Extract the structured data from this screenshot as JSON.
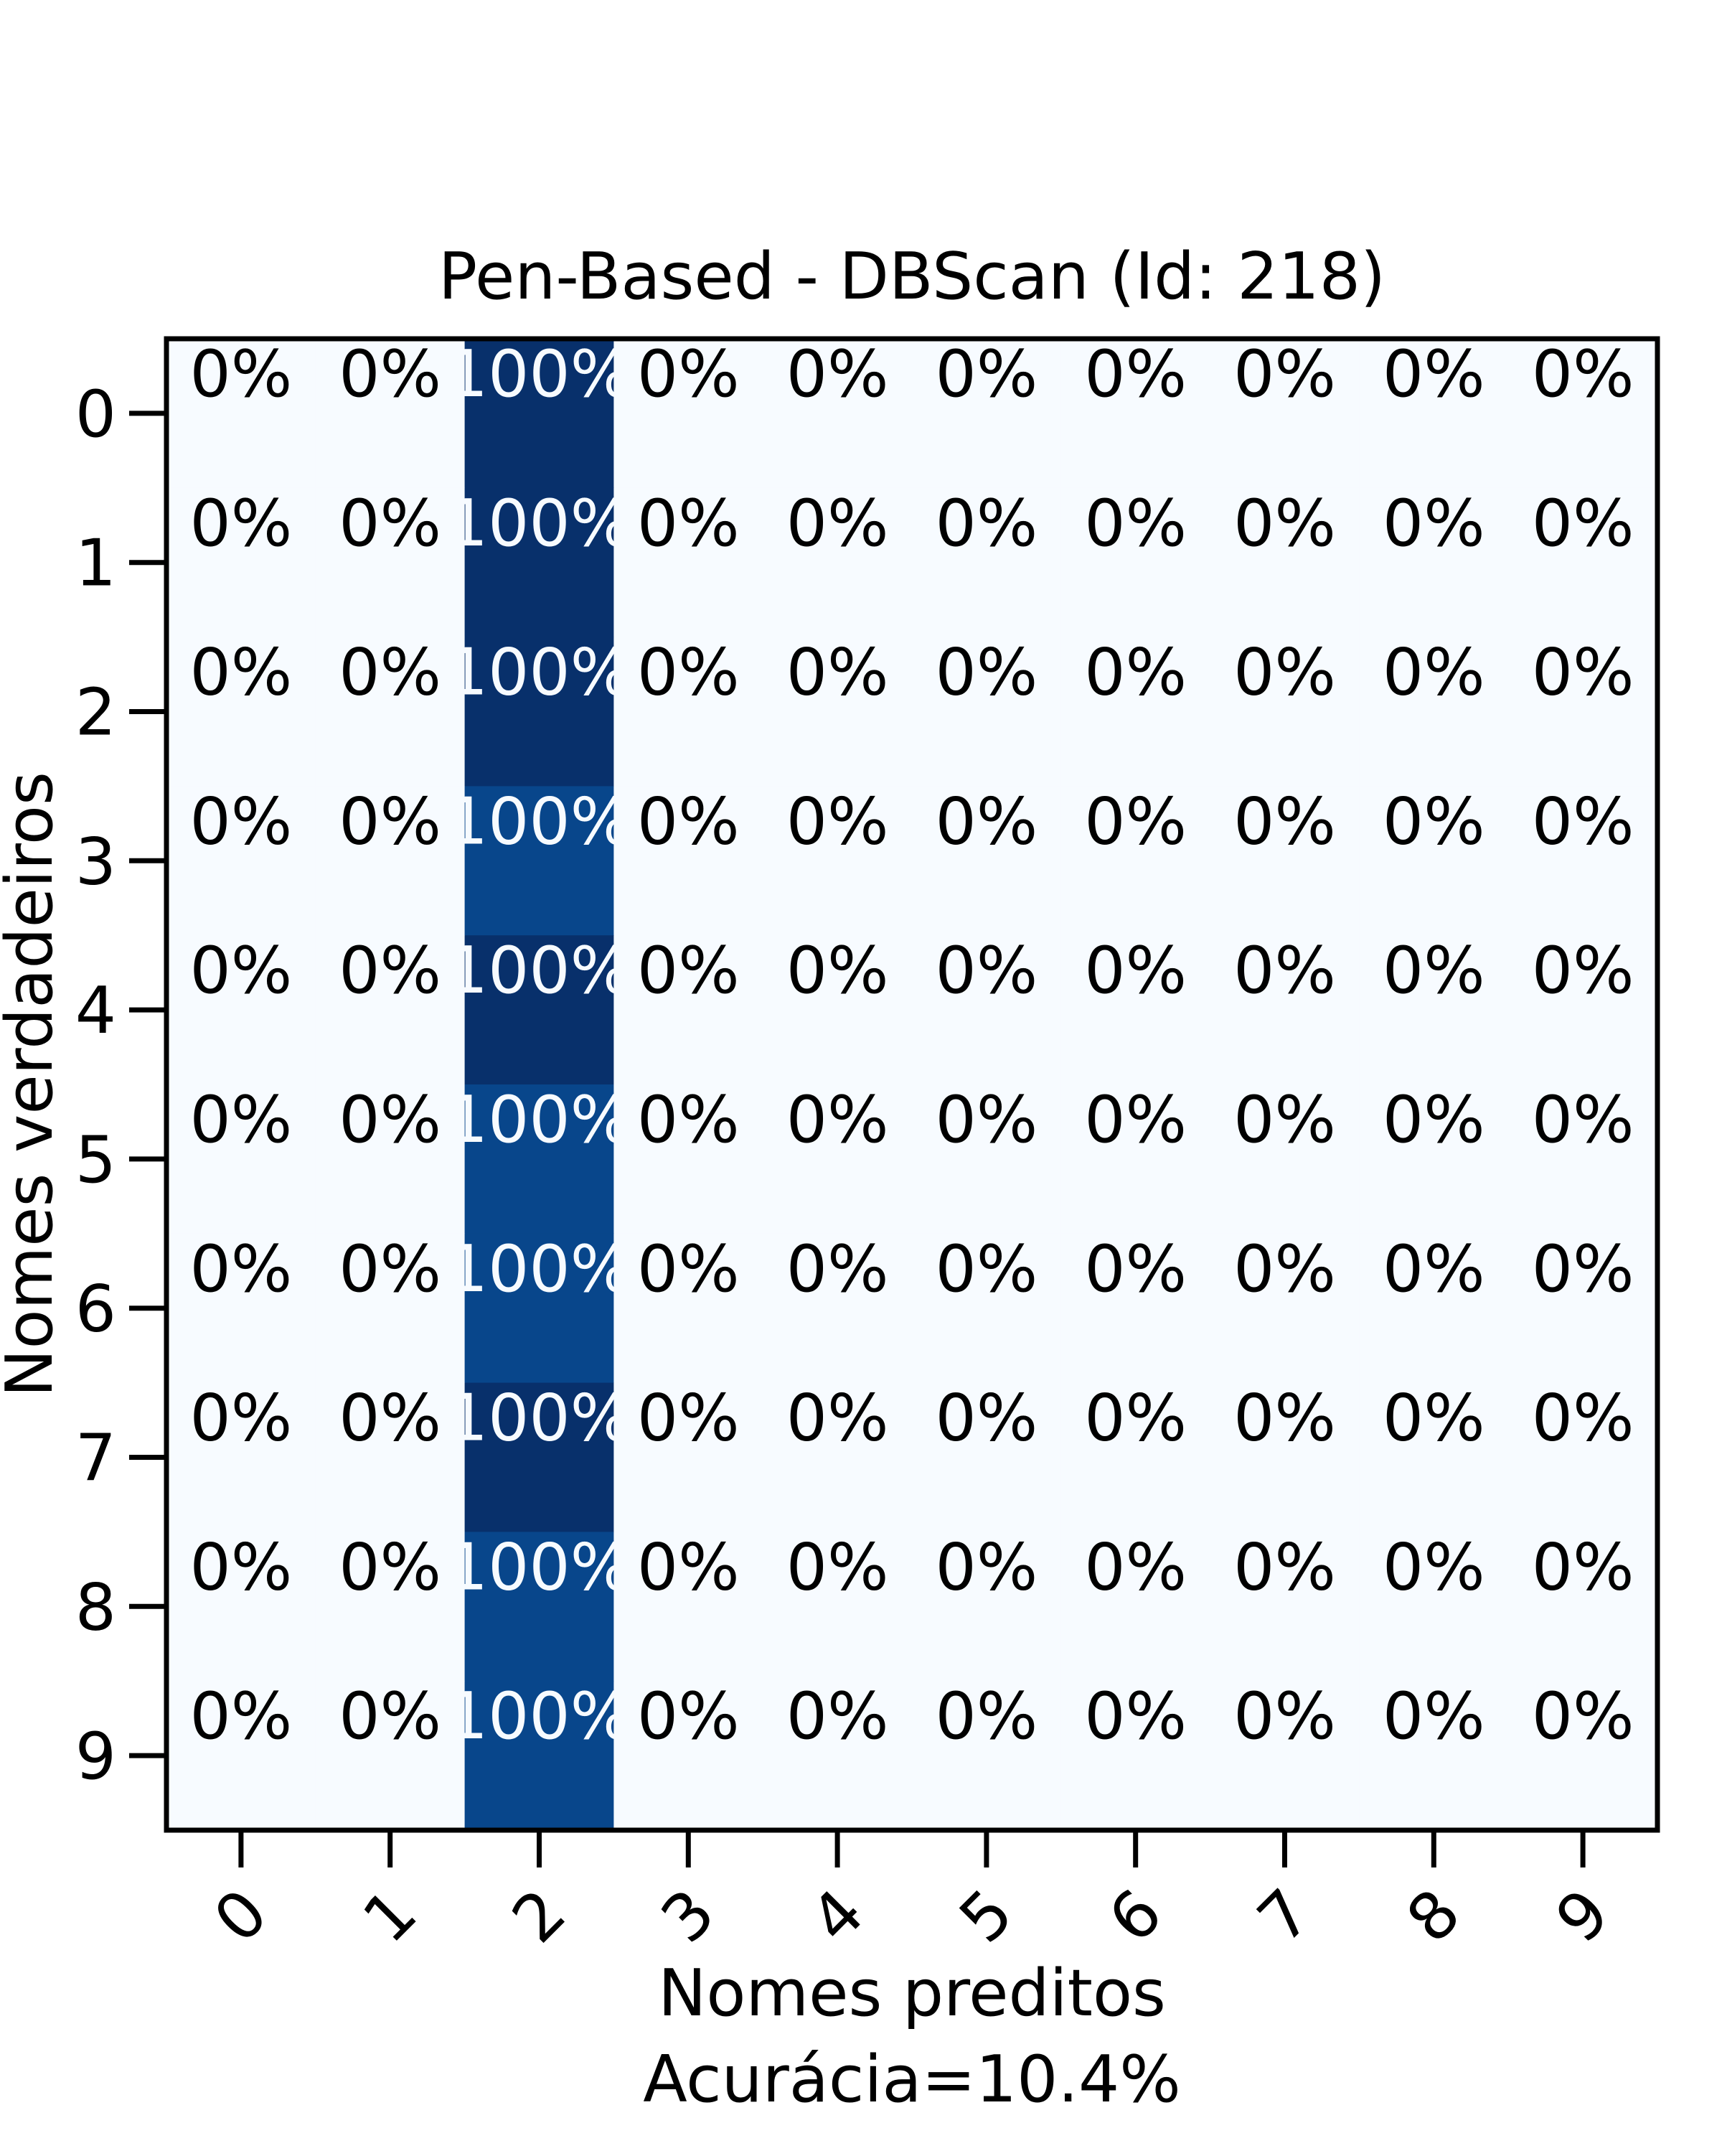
{
  "chart_data": {
    "type": "heatmap",
    "title": "Pen-Based - DBScan (Id: 218)",
    "xlabel": "Nomes preditos",
    "xlabel2": "Acurácia=10.4%",
    "ylabel": "Nomes verdadeiros",
    "x_categories": [
      "0",
      "1",
      "2",
      "3",
      "4",
      "5",
      "6",
      "7",
      "8",
      "9"
    ],
    "y_categories": [
      "0",
      "1",
      "2",
      "3",
      "4",
      "5",
      "6",
      "7",
      "8",
      "9"
    ],
    "colormap": "Blues",
    "value_unit": "percent of row",
    "values": [
      [
        0,
        0,
        100,
        0,
        0,
        0,
        0,
        0,
        0,
        0
      ],
      [
        0,
        0,
        100,
        0,
        0,
        0,
        0,
        0,
        0,
        0
      ],
      [
        0,
        0,
        100,
        0,
        0,
        0,
        0,
        0,
        0,
        0
      ],
      [
        0,
        0,
        100,
        0,
        0,
        0,
        0,
        0,
        0,
        0
      ],
      [
        0,
        0,
        100,
        0,
        0,
        0,
        0,
        0,
        0,
        0
      ],
      [
        0,
        0,
        100,
        0,
        0,
        0,
        0,
        0,
        0,
        0
      ],
      [
        0,
        0,
        100,
        0,
        0,
        0,
        0,
        0,
        0,
        0
      ],
      [
        0,
        0,
        100,
        0,
        0,
        0,
        0,
        0,
        0,
        0
      ],
      [
        0,
        0,
        100,
        0,
        0,
        0,
        0,
        0,
        0,
        0
      ],
      [
        0,
        0,
        100,
        0,
        0,
        0,
        0,
        0,
        0,
        0
      ]
    ],
    "labels": [
      [
        "0%",
        "0%",
        "100%",
        "0%",
        "0%",
        "0%",
        "0%",
        "0%",
        "0%",
        "0%"
      ],
      [
        "0%",
        "0%",
        "100%",
        "0%",
        "0%",
        "0%",
        "0%",
        "0%",
        "0%",
        "0%"
      ],
      [
        "0%",
        "0%",
        "100%",
        "0%",
        "0%",
        "0%",
        "0%",
        "0%",
        "0%",
        "0%"
      ],
      [
        "0%",
        "0%",
        "100%",
        "0%",
        "0%",
        "0%",
        "0%",
        "0%",
        "0%",
        "0%"
      ],
      [
        "0%",
        "0%",
        "100%",
        "0%",
        "0%",
        "0%",
        "0%",
        "0%",
        "0%",
        "0%"
      ],
      [
        "0%",
        "0%",
        "100%",
        "0%",
        "0%",
        "0%",
        "0%",
        "0%",
        "0%",
        "0%"
      ],
      [
        "0%",
        "0%",
        "100%",
        "0%",
        "0%",
        "0%",
        "0%",
        "0%",
        "0%",
        "0%"
      ],
      [
        "0%",
        "0%",
        "100%",
        "0%",
        "0%",
        "0%",
        "0%",
        "0%",
        "0%",
        "0%"
      ],
      [
        "0%",
        "0%",
        "100%",
        "0%",
        "0%",
        "0%",
        "0%",
        "0%",
        "0%",
        "0%"
      ],
      [
        "0%",
        "0%",
        "100%",
        "0%",
        "0%",
        "0%",
        "0%",
        "0%",
        "0%",
        "0%"
      ]
    ],
    "cell_colors": [
      [
        "#f7fbff",
        "#f7fbff",
        "#08306b",
        "#f7fbff",
        "#f7fbff",
        "#f7fbff",
        "#f7fbff",
        "#f7fbff",
        "#f7fbff",
        "#f7fbff"
      ],
      [
        "#f7fbff",
        "#f7fbff",
        "#08306b",
        "#f7fbff",
        "#f7fbff",
        "#f7fbff",
        "#f7fbff",
        "#f7fbff",
        "#f7fbff",
        "#f7fbff"
      ],
      [
        "#f7fbff",
        "#f7fbff",
        "#08306b",
        "#f7fbff",
        "#f7fbff",
        "#f7fbff",
        "#f7fbff",
        "#f7fbff",
        "#f7fbff",
        "#f7fbff"
      ],
      [
        "#f7fbff",
        "#f7fbff",
        "#08468b",
        "#f7fbff",
        "#f7fbff",
        "#f7fbff",
        "#f7fbff",
        "#f7fbff",
        "#f7fbff",
        "#f7fbff"
      ],
      [
        "#f7fbff",
        "#f7fbff",
        "#08306b",
        "#f7fbff",
        "#f7fbff",
        "#f7fbff",
        "#f7fbff",
        "#f7fbff",
        "#f7fbff",
        "#f7fbff"
      ],
      [
        "#f7fbff",
        "#f7fbff",
        "#08468b",
        "#f7fbff",
        "#f7fbff",
        "#f7fbff",
        "#f7fbff",
        "#f7fbff",
        "#f7fbff",
        "#f7fbff"
      ],
      [
        "#f7fbff",
        "#f7fbff",
        "#08468b",
        "#f7fbff",
        "#f7fbff",
        "#f7fbff",
        "#f7fbff",
        "#f7fbff",
        "#f7fbff",
        "#f7fbff"
      ],
      [
        "#f7fbff",
        "#f7fbff",
        "#08306b",
        "#f7fbff",
        "#f7fbff",
        "#f7fbff",
        "#f7fbff",
        "#f7fbff",
        "#f7fbff",
        "#f7fbff"
      ],
      [
        "#f7fbff",
        "#f7fbff",
        "#08468b",
        "#f7fbff",
        "#f7fbff",
        "#f7fbff",
        "#f7fbff",
        "#f7fbff",
        "#f7fbff",
        "#f7fbff"
      ],
      [
        "#f7fbff",
        "#f7fbff",
        "#08468b",
        "#f7fbff",
        "#f7fbff",
        "#f7fbff",
        "#f7fbff",
        "#f7fbff",
        "#f7fbff",
        "#f7fbff"
      ]
    ],
    "text_colors": {
      "on_dark": "#f7fbff",
      "on_light": "#000000"
    },
    "grid": false,
    "legend": "none",
    "colorbar": false
  }
}
